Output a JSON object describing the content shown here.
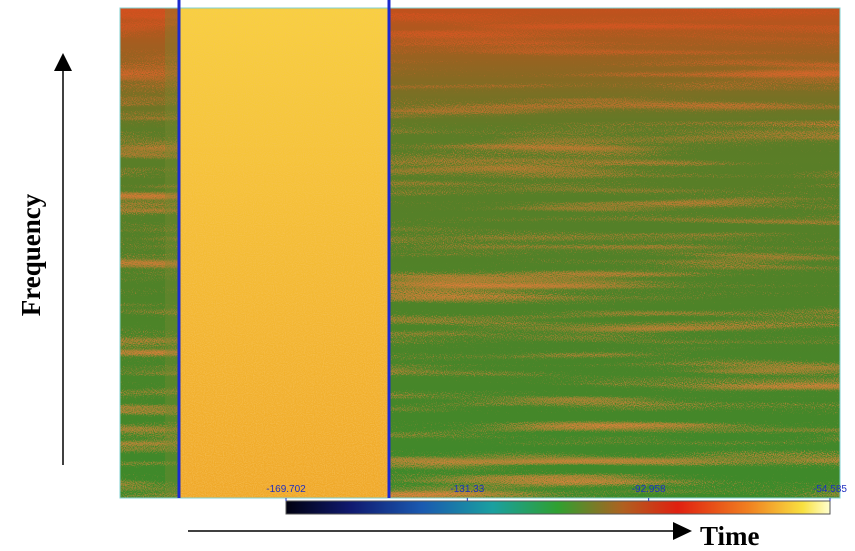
{
  "chart_data": {
    "type": "spectrogram",
    "x_label": "Time",
    "y_label": "Frequency",
    "colorbar": {
      "clim": [
        -169.702,
        -54.585
      ],
      "ticks": [
        -169.702,
        -131.33,
        -92.958,
        -54.585
      ]
    }
  }
}
